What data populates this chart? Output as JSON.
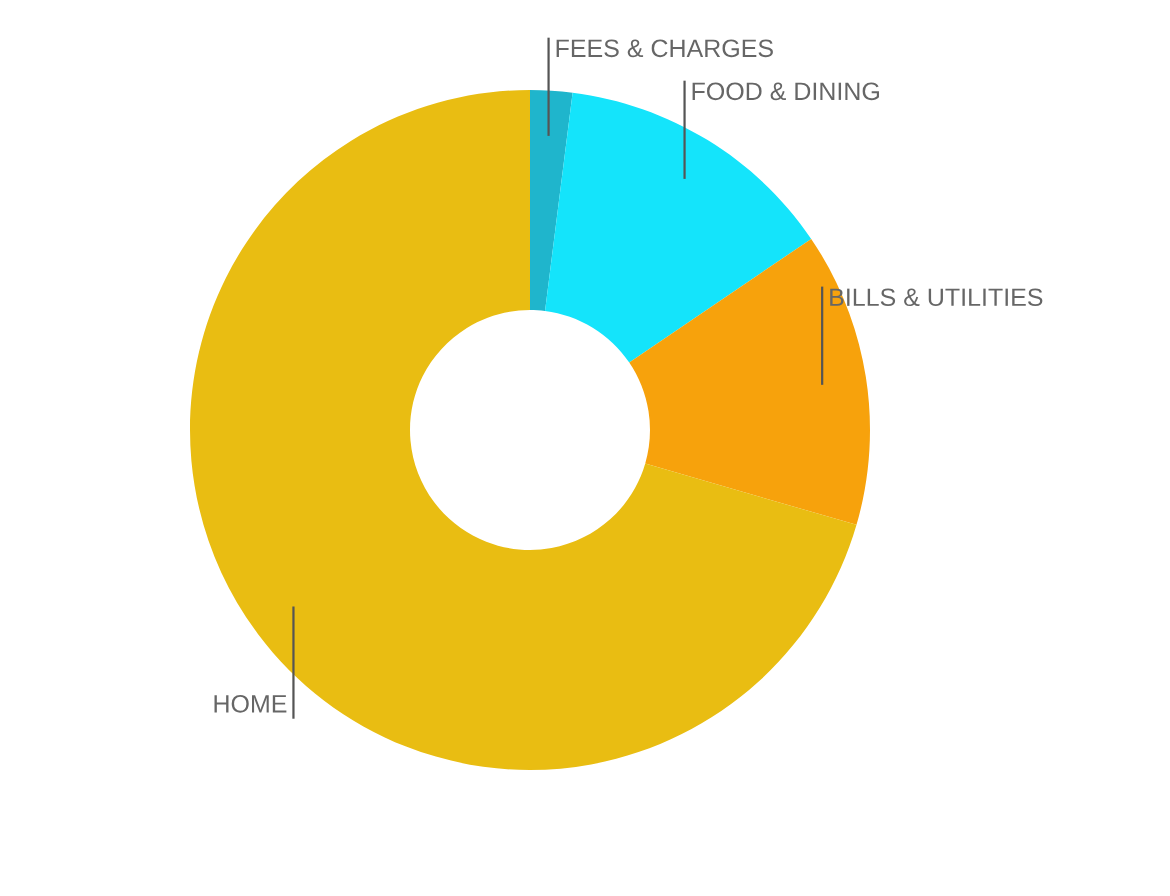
{
  "chart_data": {
    "type": "donut",
    "categories": [
      "FEES & CHARGES",
      "FOOD & DINING",
      "BILLS & UTILITIES",
      "HOME"
    ],
    "values": [
      2,
      13.5,
      14,
      70.5
    ],
    "colors": [
      "#1fb5cc",
      "#14e4fb",
      "#f7a20c",
      "#e9bd12"
    ],
    "legend": false
  }
}
